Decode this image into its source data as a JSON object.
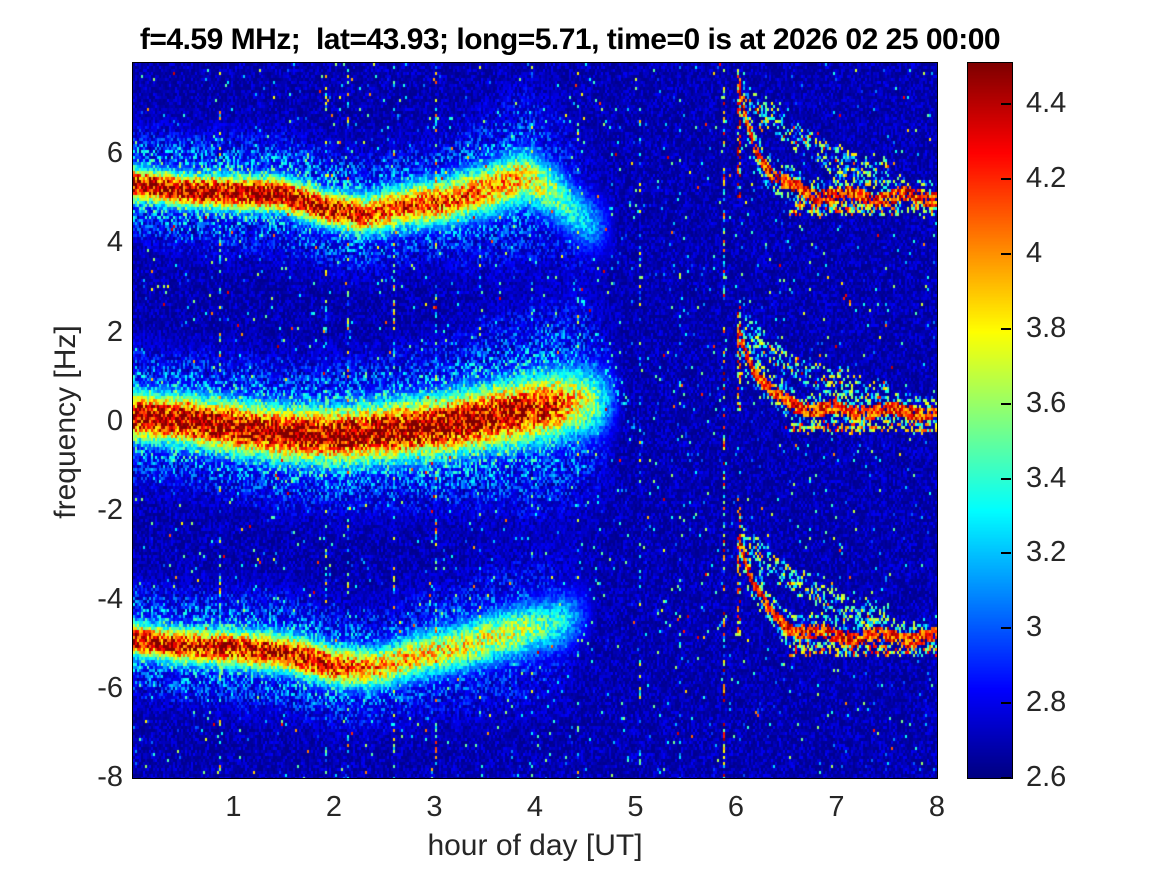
{
  "title": "f=4.59 MHz;  lat=43.93; long=5.71, time=0 is at 2026 02 25 00:00",
  "axes": {
    "xlabel": "hour of day [UT]",
    "ylabel": "frequency [Hz]",
    "x_ticks": [
      "1",
      "2",
      "3",
      "4",
      "5",
      "6",
      "7",
      "8"
    ],
    "y_ticks": [
      "6",
      "4",
      "2",
      "0",
      "-2",
      "-4",
      "-6",
      "-8"
    ]
  },
  "colorbar": {
    "tick_labels": [
      "4.4",
      "4.2",
      "4",
      "3.8",
      "3.6",
      "3.4",
      "3.2",
      "3",
      "2.8",
      "2.6"
    ]
  },
  "chart_data": {
    "type": "heatmap",
    "title": "f=4.59 MHz;  lat=43.93; long=5.71, time=0 is at 2026 02 25 00:00",
    "xlabel": "hour of day [UT]",
    "ylabel": "frequency [Hz]",
    "xlim": [
      0,
      8
    ],
    "ylim": [
      -8,
      8.05
    ],
    "x_ticks": [
      1,
      2,
      3,
      4,
      5,
      6,
      7,
      8
    ],
    "y_ticks": [
      6,
      4,
      2,
      0,
      -2,
      -4,
      -6,
      -8
    ],
    "grid": false,
    "colormap": "jet",
    "color_scale": {
      "range": [
        2.6,
        4.51
      ],
      "ticks": [
        4.4,
        4.2,
        4,
        3.8,
        3.6,
        3.4,
        3.2,
        3,
        2.8,
        2.6
      ]
    },
    "background_level": 2.7,
    "bands": [
      {
        "name": "upper-doppler-band",
        "center": [
          [
            0,
            5.35
          ],
          [
            0.5,
            5.2
          ],
          [
            1.0,
            5.15
          ],
          [
            1.5,
            5.1
          ],
          [
            1.9,
            4.8
          ],
          [
            2.3,
            4.65
          ],
          [
            2.7,
            4.85
          ],
          [
            3.1,
            4.95
          ],
          [
            3.5,
            5.2
          ],
          [
            3.9,
            5.5
          ],
          [
            4.2,
            5.15
          ],
          [
            4.5,
            4.5
          ],
          [
            4.85,
            4.3
          ]
        ],
        "strength": [
          [
            0,
            1
          ],
          [
            1.6,
            1
          ],
          [
            2.4,
            0.85
          ],
          [
            3.2,
            0.8
          ],
          [
            3.8,
            0.72
          ],
          [
            4.2,
            0.5
          ],
          [
            4.6,
            0.28
          ],
          [
            4.85,
            0
          ]
        ],
        "core_sigma": [
          [
            0,
            0.26
          ],
          [
            2,
            0.3
          ],
          [
            4,
            0.45
          ],
          [
            4.85,
            0.5
          ]
        ],
        "halo_sigma": [
          [
            0,
            0.8
          ],
          [
            3,
            0.9
          ],
          [
            3.9,
            1.4
          ],
          [
            4.85,
            1.5
          ]
        ],
        "core_amp": 1.95,
        "halo_amp": 0.75
      },
      {
        "name": "center-doppler-band",
        "center": [
          [
            0,
            0.15
          ],
          [
            0.5,
            0.05
          ],
          [
            1.0,
            -0.1
          ],
          [
            1.5,
            -0.25
          ],
          [
            2.0,
            -0.3
          ],
          [
            2.5,
            -0.2
          ],
          [
            3.0,
            -0.1
          ],
          [
            3.5,
            0.1
          ],
          [
            4.0,
            0.3
          ],
          [
            4.4,
            0.45
          ],
          [
            4.9,
            0.5
          ]
        ],
        "strength": [
          [
            0,
            1
          ],
          [
            3.6,
            1
          ],
          [
            4.2,
            0.85
          ],
          [
            4.6,
            0.5
          ],
          [
            4.9,
            0
          ]
        ],
        "core_sigma": [
          [
            0,
            0.38
          ],
          [
            3.5,
            0.5
          ],
          [
            4.9,
            0.6
          ]
        ],
        "halo_sigma": [
          [
            0,
            0.9
          ],
          [
            3,
            1.1
          ],
          [
            4.5,
            1.6
          ],
          [
            4.9,
            1.6
          ]
        ],
        "core_amp": 1.95,
        "halo_amp": 0.8
      },
      {
        "name": "lower-doppler-band",
        "center": [
          [
            0,
            -4.85
          ],
          [
            0.5,
            -5.0
          ],
          [
            1.0,
            -5.05
          ],
          [
            1.5,
            -5.15
          ],
          [
            2.0,
            -5.45
          ],
          [
            2.4,
            -5.5
          ],
          [
            2.8,
            -5.25
          ],
          [
            3.2,
            -5.05
          ],
          [
            3.6,
            -4.8
          ],
          [
            4.0,
            -4.6
          ],
          [
            4.3,
            -4.45
          ],
          [
            4.65,
            -4.15
          ]
        ],
        "strength": [
          [
            0,
            1
          ],
          [
            1.8,
            1
          ],
          [
            2.4,
            0.8
          ],
          [
            3.0,
            0.72
          ],
          [
            3.8,
            0.62
          ],
          [
            4.3,
            0.4
          ],
          [
            4.65,
            0
          ]
        ],
        "core_sigma": [
          [
            0,
            0.28
          ],
          [
            2.5,
            0.34
          ],
          [
            4,
            0.45
          ],
          [
            4.65,
            0.5
          ]
        ],
        "halo_sigma": [
          [
            0,
            0.8
          ],
          [
            2.5,
            0.9
          ],
          [
            4,
            1.3
          ],
          [
            4.65,
            1.4
          ]
        ],
        "core_amp": 1.8,
        "halo_amp": 0.7
      }
    ],
    "hook_onset": 6.03,
    "hooks": [
      {
        "name": "upper-hook",
        "level": 5.05,
        "amp": 2.4,
        "tau": 0.22,
        "arc_amp": 2.6,
        "arc_tau": 0.85,
        "echo_dy": -0.25
      },
      {
        "name": "center-hook",
        "level": 0.25,
        "amp": 1.9,
        "tau": 0.22,
        "arc_amp": 2.0,
        "arc_tau": 0.85,
        "echo_dy": -0.35
      },
      {
        "name": "lower-hook",
        "level": -4.8,
        "amp": 2.3,
        "tau": 0.22,
        "arc_amp": 2.4,
        "arc_tau": 0.85,
        "echo_dy": -0.28
      }
    ],
    "streak": {
      "from": [
        4.35,
        3.2
      ],
      "to": [
        5.1,
        -0.6
      ]
    },
    "artifact_lines": [
      {
        "hour": 0.87,
        "density": 0.3,
        "boost": 1.1
      },
      {
        "hour": 1.93,
        "density": 0.22,
        "boost": 1.0
      },
      {
        "hour": 2.14,
        "density": 0.3,
        "boost": 1.2
      },
      {
        "hour": 2.59,
        "density": 0.25,
        "boost": 1.1
      },
      {
        "hour": 3.02,
        "density": 0.35,
        "boost": 1.3
      },
      {
        "hour": 3.45,
        "density": 0.18,
        "boost": 0.9
      },
      {
        "hour": 3.97,
        "density": 0.15,
        "boost": 0.9
      },
      {
        "hour": 4.42,
        "density": 0.2,
        "boost": 1.0
      },
      {
        "hour": 5.04,
        "density": 0.22,
        "boost": 1.0
      },
      {
        "hour": 5.45,
        "density": 0.15,
        "boost": 0.8
      },
      {
        "hour": 5.89,
        "density": 0.5,
        "boost": 1.6
      }
    ]
  }
}
